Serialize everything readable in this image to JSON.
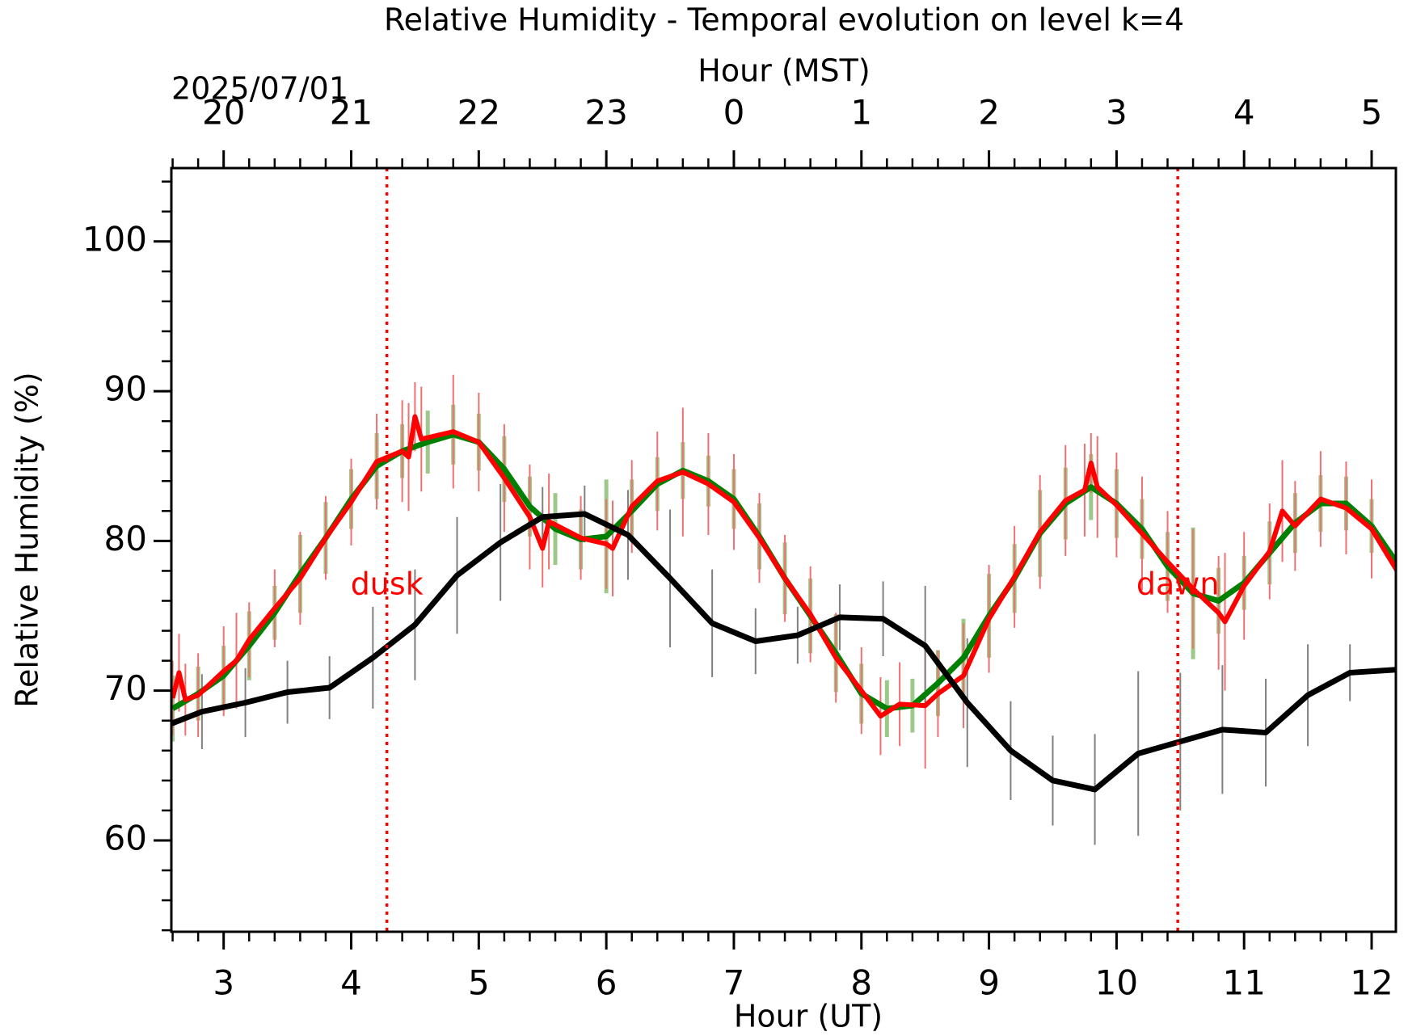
{
  "chart_data": {
    "type": "line",
    "title": "Relative Humidity - Temporal evolution on level k=4",
    "x_label": "Hour (UT)",
    "x2_label": "Hour (MST)",
    "date_label": "2025/07/01",
    "y_label": "Relative Humidity (%)",
    "xlim": [
      2.59,
      12.19
    ],
    "ylim": [
      53.9,
      104.9
    ],
    "xticks": [
      3,
      4,
      5,
      6,
      7,
      8,
      9,
      10,
      11,
      12
    ],
    "x2ticks": [
      {
        "value": 3,
        "label": "20"
      },
      {
        "value": 4,
        "label": "21"
      },
      {
        "value": 5,
        "label": "22"
      },
      {
        "value": 6,
        "label": "23"
      },
      {
        "value": 7,
        "label": "0"
      },
      {
        "value": 8,
        "label": "1"
      },
      {
        "value": 9,
        "label": "2"
      },
      {
        "value": 10,
        "label": "3"
      },
      {
        "value": 11,
        "label": "4"
      },
      {
        "value": 12,
        "label": "5"
      }
    ],
    "yticks": [
      60,
      70,
      80,
      90,
      100
    ],
    "x_minor_step": 0.2,
    "y_minor_step": 2,
    "events": [
      {
        "name": "dusk",
        "x": 4.28,
        "color": "#ff0000"
      },
      {
        "name": "dawn",
        "x": 10.48,
        "color": "#ff0000"
      }
    ],
    "event_label_y": 77,
    "series": [
      {
        "color": "#008000",
        "error_color": "#9cc98a",
        "width": 7,
        "x": [
          2.6,
          2.8,
          3.0,
          3.2,
          3.4,
          3.6,
          3.8,
          4.0,
          4.2,
          4.4,
          4.6,
          4.8,
          5.0,
          5.2,
          5.4,
          5.6,
          5.8,
          6.0,
          6.2,
          6.4,
          6.6,
          6.8,
          7.0,
          7.2,
          7.4,
          7.6,
          7.8,
          8.0,
          8.2,
          8.4,
          8.6,
          8.8,
          9.0,
          9.2,
          9.4,
          9.6,
          9.8,
          10.0,
          10.2,
          10.4,
          10.6,
          10.8,
          11.0,
          11.2,
          11.4,
          11.6,
          11.8,
          12.0,
          12.2
        ],
        "values": [
          68.8,
          69.8,
          71.0,
          73.0,
          75.2,
          77.8,
          80.2,
          82.8,
          85.0,
          86.0,
          86.6,
          87.1,
          86.6,
          84.8,
          82.3,
          80.8,
          80.1,
          80.3,
          82.0,
          83.8,
          84.7,
          84.0,
          82.8,
          80.3,
          77.5,
          75.0,
          72.5,
          69.8,
          68.8,
          69.0,
          70.5,
          72.2,
          75.0,
          77.5,
          80.5,
          82.5,
          83.6,
          82.5,
          80.8,
          78.3,
          76.5,
          76.0,
          77.2,
          79.2,
          81.2,
          82.5,
          82.5,
          81.0,
          78.5
        ],
        "errors": [
          2.2,
          1.8,
          2.0,
          2.3,
          1.8,
          2.6,
          2.4,
          2.0,
          2.2,
          1.8,
          2.1,
          2.0,
          1.9,
          2.2,
          2.0,
          2.4,
          2.0,
          3.8,
          2.1,
          1.8,
          1.9,
          1.7,
          2.0,
          2.2,
          2.4,
          2.5,
          2.6,
          2.0,
          1.9,
          1.8,
          2.2,
          2.6,
          2.8,
          2.3,
          2.9,
          2.4,
          2.2,
          2.3,
          2.0,
          2.3,
          4.4,
          2.2,
          1.8,
          2.1,
          2.0,
          1.9,
          1.8,
          1.8,
          1.7
        ]
      },
      {
        "color": "#ff0000",
        "error_color": "#f07070",
        "width": 6,
        "x": [
          2.6,
          2.65,
          2.7,
          2.8,
          3.0,
          3.1,
          3.2,
          3.4,
          3.6,
          3.8,
          4.0,
          4.2,
          4.4,
          4.45,
          4.5,
          4.55,
          4.8,
          5.0,
          5.2,
          5.4,
          5.5,
          5.55,
          5.8,
          6.0,
          6.05,
          6.2,
          6.4,
          6.6,
          6.8,
          7.0,
          7.2,
          7.4,
          7.6,
          7.8,
          8.0,
          8.15,
          8.3,
          8.5,
          8.6,
          8.8,
          9.0,
          9.2,
          9.4,
          9.6,
          9.75,
          9.8,
          9.85,
          10.0,
          10.2,
          10.4,
          10.6,
          10.8,
          10.85,
          11.0,
          11.2,
          11.3,
          11.4,
          11.6,
          11.8,
          12.0,
          12.2
        ],
        "values": [
          69.5,
          71.2,
          69.4,
          69.7,
          71.3,
          72.0,
          73.4,
          75.5,
          77.5,
          80.2,
          82.6,
          85.3,
          86.0,
          85.6,
          88.3,
          86.8,
          87.3,
          86.6,
          84.2,
          81.6,
          79.5,
          81.3,
          80.2,
          79.8,
          79.5,
          82.3,
          84.0,
          84.6,
          83.8,
          82.6,
          80.2,
          77.5,
          75.1,
          72.2,
          70.0,
          68.3,
          69.1,
          69.0,
          69.8,
          71.0,
          74.8,
          77.6,
          80.6,
          82.7,
          83.4,
          85.2,
          83.6,
          82.4,
          80.5,
          78.6,
          76.8,
          75.2,
          74.6,
          77.0,
          79.3,
          82.0,
          81.0,
          82.8,
          82.2,
          80.8,
          78.0
        ],
        "errors": [
          2.5,
          2.6,
          2.4,
          2.8,
          3.0,
          3.2,
          2.5,
          2.6,
          3.1,
          2.8,
          2.9,
          3.2,
          3.4,
          3.6,
          2.3,
          3.5,
          3.8,
          3.3,
          3.6,
          3.5,
          2.6,
          3.2,
          2.8,
          3.0,
          3.2,
          3.1,
          3.3,
          4.3,
          3.4,
          3.2,
          3.0,
          2.9,
          3.2,
          3.0,
          2.9,
          2.6,
          2.8,
          4.2,
          2.9,
          3.5,
          3.6,
          3.4,
          3.8,
          3.7,
          3.1,
          2.0,
          3.4,
          3.5,
          3.8,
          3.4,
          4.0,
          3.8,
          4.6,
          3.6,
          3.2,
          3.4,
          3.0,
          3.2,
          3.1,
          3.3,
          3.0
        ]
      },
      {
        "color": "#000000",
        "error_color": "#808080",
        "width": 7,
        "x": [
          2.59,
          2.83,
          3.17,
          3.5,
          3.83,
          4.17,
          4.5,
          4.83,
          5.17,
          5.5,
          5.83,
          6.17,
          6.5,
          6.83,
          7.17,
          7.5,
          7.83,
          8.17,
          8.5,
          8.83,
          9.17,
          9.5,
          9.83,
          10.17,
          10.5,
          10.83,
          11.17,
          11.5,
          11.83,
          12.19
        ],
        "values": [
          67.8,
          68.6,
          69.2,
          69.9,
          70.2,
          72.2,
          74.4,
          77.7,
          79.9,
          81.6,
          81.8,
          80.4,
          77.5,
          74.5,
          73.3,
          73.7,
          74.9,
          74.8,
          73.0,
          69.2,
          66.0,
          64.0,
          63.4,
          65.8,
          66.6,
          67.4,
          67.2,
          69.7,
          71.2,
          71.4
        ],
        "errors": [
          0,
          2.5,
          2.3,
          2.1,
          2.1,
          3.4,
          3.7,
          3.9,
          3.9,
          2.0,
          1.9,
          3.0,
          4.6,
          3.6,
          2.2,
          1.9,
          2.2,
          2.5,
          4.0,
          4.3,
          3.3,
          3.0,
          3.7,
          5.5,
          4.6,
          4.3,
          3.6,
          3.4,
          1.9,
          1.7
        ]
      }
    ]
  }
}
